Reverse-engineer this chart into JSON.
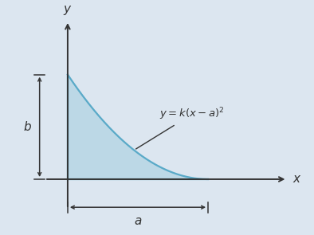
{
  "background_color": "#dce6f0",
  "fill_color": "#a8cfe0",
  "fill_alpha": 0.6,
  "curve_color": "#5aaac8",
  "axis_color": "#333333",
  "annotation_color": "#333333",
  "xlim": [
    -0.45,
    1.85
  ],
  "ylim": [
    -0.42,
    1.35
  ],
  "a_val": 1.1,
  "b_val": 0.82,
  "equation_text": "$y = k(x - a)^2$",
  "x_label": "$x$",
  "y_label": "$y$",
  "a_label": "$a$",
  "b_label": "$b$"
}
